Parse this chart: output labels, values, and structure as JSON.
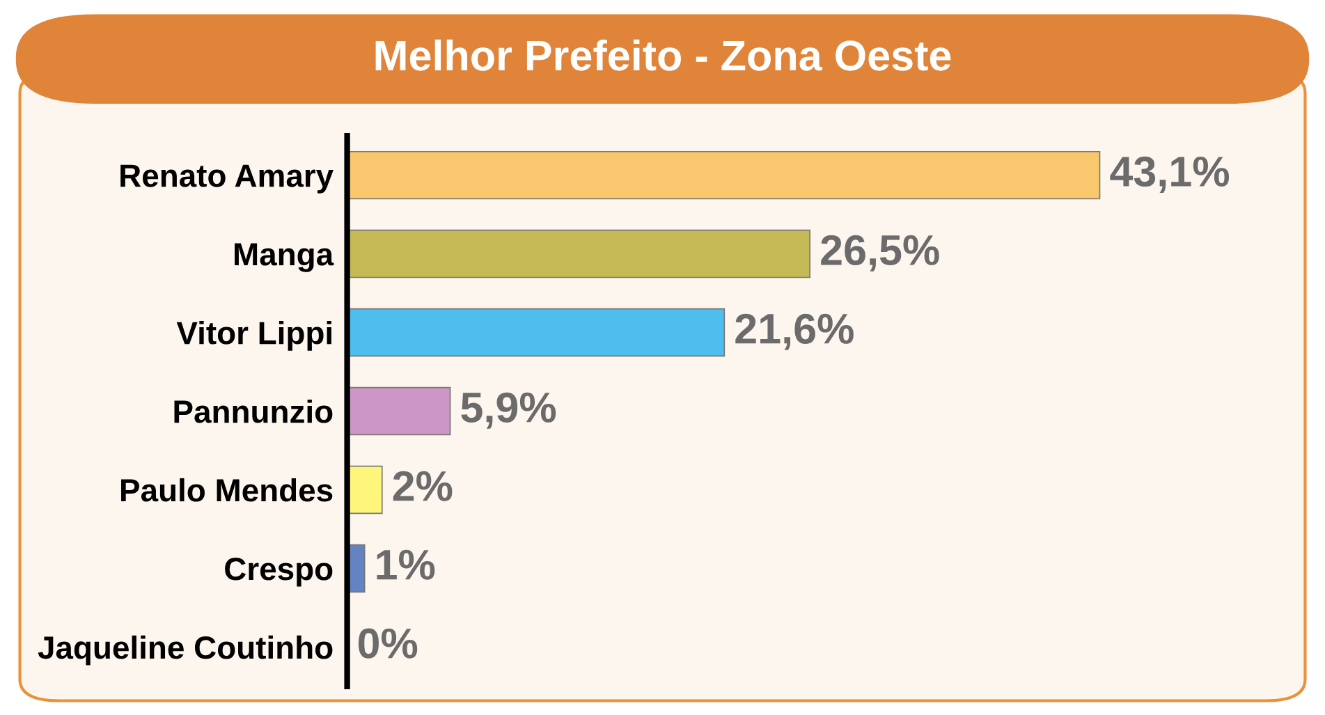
{
  "chart_data": {
    "type": "bar",
    "orientation": "horizontal",
    "title": "Melhor Prefeito - Zona Oeste",
    "categories": [
      "Renato Amary",
      "Manga",
      "Vitor Lippi",
      "Pannunzio",
      "Paulo Mendes",
      "Crespo",
      "Jaqueline Coutinho"
    ],
    "values": [
      43.1,
      26.5,
      21.6,
      5.9,
      2,
      1,
      0
    ],
    "colors": [
      "#f9c76d",
      "#c4b955",
      "#4fbdee",
      "#cc96c6",
      "#fdf67a",
      "#6483c2",
      "#c8a24a"
    ],
    "value_labels": [
      "43,1%",
      "26,5%",
      "21,6%",
      "5,9%",
      "2%",
      "1%",
      "0%"
    ],
    "tick_labels": "y",
    "grid": false,
    "legend": false
  }
}
